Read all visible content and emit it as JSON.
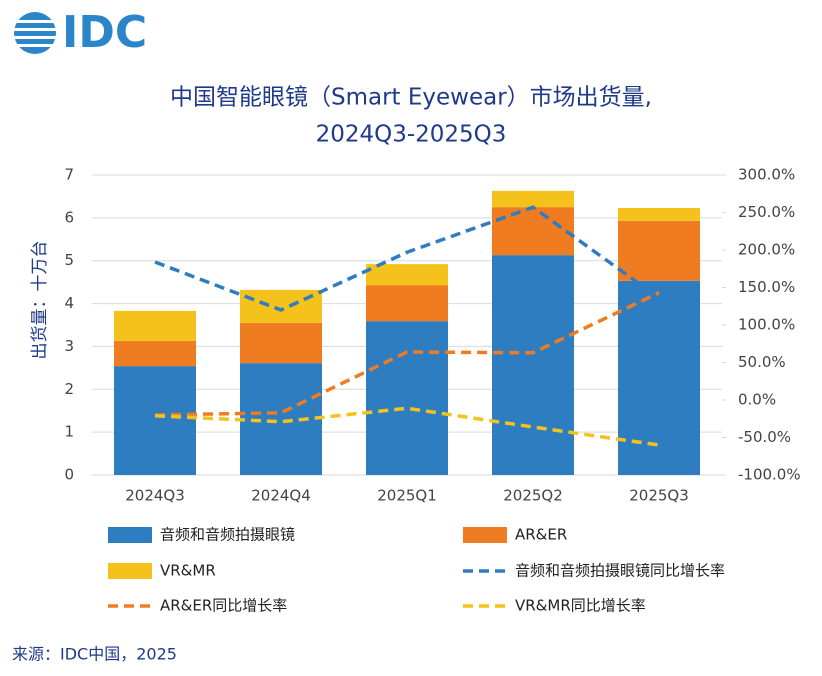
{
  "logo": "IDC",
  "source": "来源：IDC中国，2025",
  "chart_data": {
    "type": "bar",
    "stacked": true,
    "title": [
      "中国智能眼镜（Smart Eyewear）市场出货量,",
      "2024Q3-2025Q3"
    ],
    "y_label": "出货量：十万台",
    "categories": [
      "2024Q3",
      "2024Q4",
      "2025Q1",
      "2025Q2",
      "2025Q3"
    ],
    "ylim": [
      0,
      7
    ],
    "yticks": [
      0,
      1,
      2,
      3,
      4,
      5,
      6,
      7
    ],
    "y2lim": [
      -100,
      300
    ],
    "y2ticks": [
      {
        "value": -100,
        "label": "-100.0%"
      },
      {
        "value": -50,
        "label": "-50.0%"
      },
      {
        "value": 0,
        "label": "0.0%"
      },
      {
        "value": 50,
        "label": "50.0%"
      },
      {
        "value": 100,
        "label": "100.0%"
      },
      {
        "value": 150,
        "label": "150.0%"
      },
      {
        "value": 200,
        "label": "200.0%"
      },
      {
        "value": 250,
        "label": "250.0%"
      },
      {
        "value": 300,
        "label": "300.0%"
      }
    ],
    "series": [
      {
        "name": "音频和音频拍摄眼镜",
        "color": "#2e7dc1",
        "values": [
          2.54,
          2.61,
          3.59,
          5.13,
          4.53
        ]
      },
      {
        "name": "AR&ER",
        "color": "#f07c22",
        "values": [
          0.59,
          0.94,
          0.84,
          1.12,
          1.4
        ]
      },
      {
        "name": "VR&MR",
        "color": "#f5c21b",
        "values": [
          0.7,
          0.77,
          0.49,
          0.38,
          0.3
        ]
      },
      {
        "name": "音频和音频拍摄眼镜同比增长率",
        "type": "line",
        "axis": "y2",
        "color": "#2e7dc1",
        "values": [
          184,
          120,
          197,
          257,
          136
        ]
      },
      {
        "name": "AR&ER同比增长率",
        "type": "line",
        "axis": "y2",
        "color": "#f07c22",
        "values": [
          -20,
          -17,
          64,
          63,
          143
        ]
      },
      {
        "name": "VR&MR同比增长率",
        "type": "line",
        "axis": "y2",
        "color": "#f5c21b",
        "values": [
          -21,
          -29,
          -11,
          -36,
          -60
        ]
      }
    ]
  }
}
